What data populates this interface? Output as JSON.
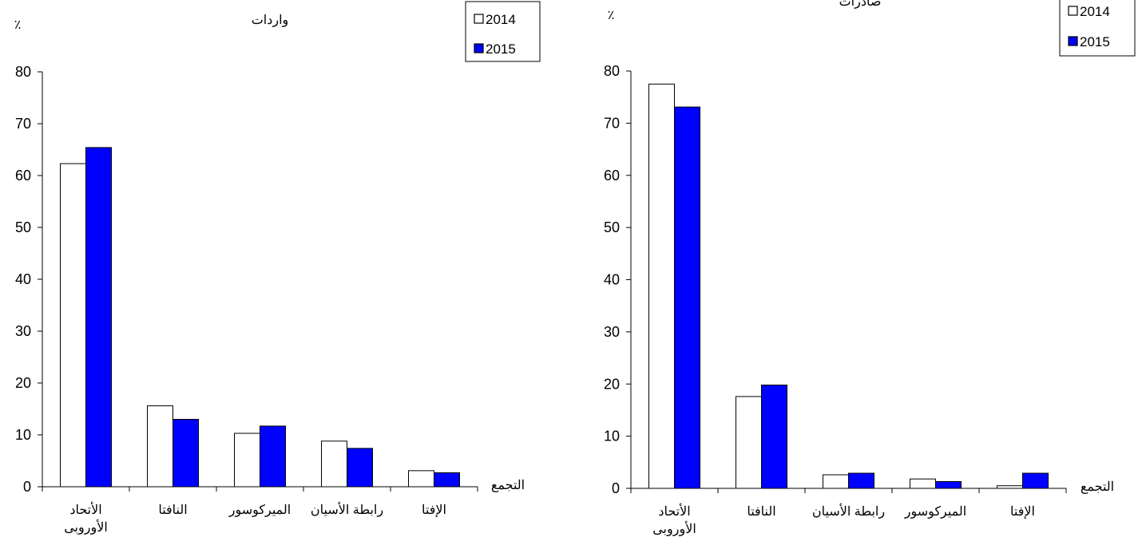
{
  "colors": {
    "series_2014": "#ffffff",
    "series_2015": "#0000ff",
    "axis": "#000000",
    "outline": "#000000"
  },
  "chart_data": [
    {
      "type": "bar",
      "title": "واردات",
      "ylabel": "٪",
      "xlabel": "التجمع",
      "categories": [
        "الأتحاد الأوروبى",
        "النافتا",
        "الميركوسور",
        "رابطة الأسيان",
        "الإفتا"
      ],
      "category_lines": [
        [
          "الأتحاد",
          "الأوروبى"
        ],
        [
          "النافتا"
        ],
        [
          "الميركوسور"
        ],
        [
          "رابطة الأسيان"
        ],
        [
          "الإفتا"
        ]
      ],
      "series": [
        {
          "name": "2014",
          "values": [
            62.3,
            15.6,
            10.3,
            8.8,
            3.1
          ]
        },
        {
          "name": "2015",
          "values": [
            65.4,
            13.0,
            11.7,
            7.4,
            2.7
          ]
        }
      ],
      "ylim": [
        0,
        80
      ],
      "yticks": [
        "0",
        "10",
        "20",
        "30",
        "40",
        "50",
        "60",
        "70",
        "80"
      ],
      "grid": false,
      "legend": "top-right"
    },
    {
      "type": "bar",
      "title": "صادرات",
      "ylabel": "٪",
      "xlabel": "التجمع",
      "categories": [
        "الأتحاد الأوروبى",
        "النافتا",
        "رابطة الأسيان",
        "الميركوسور",
        "الإفتا"
      ],
      "category_lines": [
        [
          "الأتحاد",
          "الأوروبى"
        ],
        [
          "النافتا"
        ],
        [
          "رابطة الأسيان"
        ],
        [
          "الميركوسور"
        ],
        [
          "الإفتا"
        ]
      ],
      "series": [
        {
          "name": "2014",
          "values": [
            77.5,
            17.6,
            2.6,
            1.8,
            0.5
          ]
        },
        {
          "name": "2015",
          "values": [
            73.1,
            19.8,
            2.9,
            1.3,
            2.9
          ]
        }
      ],
      "ylim": [
        0,
        80
      ],
      "yticks": [
        "0",
        "10",
        "20",
        "30",
        "40",
        "50",
        "60",
        "70",
        "80"
      ],
      "grid": false,
      "legend": "top-right"
    }
  ]
}
